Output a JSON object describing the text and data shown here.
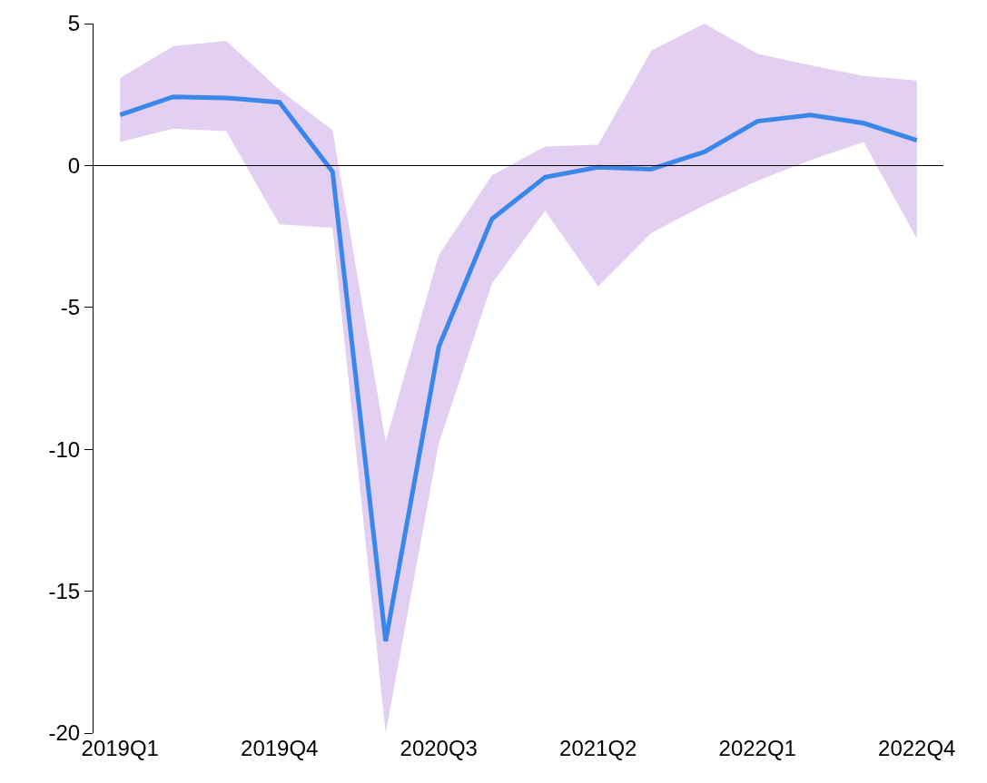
{
  "chart_data": {
    "type": "line",
    "categories": [
      "2019Q1",
      null,
      null,
      "2019Q4",
      null,
      null,
      "2020Q3",
      null,
      null,
      "2021Q2",
      null,
      null,
      "2022Q1",
      null,
      null,
      "2022Q4"
    ],
    "series": [
      {
        "color": "#3a87ea",
        "values": [
          1.78,
          2.42,
          2.38,
          2.23,
          -0.22,
          -16.76,
          -6.39,
          -1.88,
          -0.41,
          -0.06,
          -0.13,
          0.48,
          1.56,
          1.78,
          1.49,
          0.89
        ],
        "lower": [
          0.83,
          1.3,
          1.21,
          -2.07,
          -2.19,
          -20,
          -9.79,
          -4.17,
          -1.59,
          -4.26,
          -2.38,
          -1.4,
          -0.54,
          0.19,
          0.83,
          -2.58
        ],
        "upper": [
          3.08,
          4.2,
          4.39,
          2.67,
          1.24,
          -9.73,
          -3.15,
          -0.35,
          0.67,
          0.73,
          4.04,
          5,
          3.94,
          3.53,
          3.15,
          2.99
        ]
      }
    ],
    "ref_lines": [
      {
        "axis": "y",
        "value": 0,
        "color": "#000000"
      }
    ],
    "ylim": [
      -20,
      5
    ],
    "yticks": [
      -20,
      -15,
      -10,
      -5,
      0,
      5
    ],
    "marker": "none",
    "line_style": "solid"
  }
}
